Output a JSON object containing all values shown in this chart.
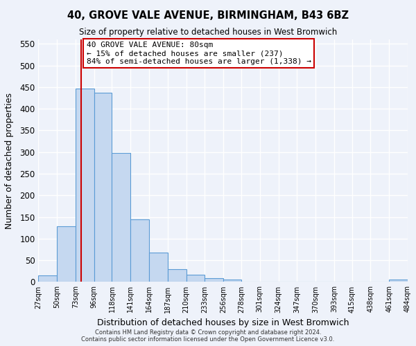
{
  "title": "40, GROVE VALE AVENUE, BIRMINGHAM, B43 6BZ",
  "subtitle": "Size of property relative to detached houses in West Bromwich",
  "xlabel": "Distribution of detached houses by size in West Bromwich",
  "ylabel": "Number of detached properties",
  "bar_values": [
    15,
    128,
    447,
    437,
    298,
    145,
    68,
    29,
    17,
    8,
    5,
    1,
    0,
    0,
    0,
    0,
    0,
    0,
    0,
    5
  ],
  "bin_edges": [
    27,
    50,
    73,
    96,
    118,
    141,
    164,
    187,
    210,
    233,
    256,
    278,
    301,
    324,
    347,
    370,
    393,
    415,
    438,
    461,
    484
  ],
  "tick_labels": [
    "27sqm",
    "50sqm",
    "73sqm",
    "96sqm",
    "118sqm",
    "141sqm",
    "164sqm",
    "187sqm",
    "210sqm",
    "233sqm",
    "256sqm",
    "278sqm",
    "301sqm",
    "324sqm",
    "347sqm",
    "370sqm",
    "393sqm",
    "415sqm",
    "438sqm",
    "461sqm",
    "484sqm"
  ],
  "bar_color": "#c5d8f0",
  "bar_edge_color": "#5b9bd5",
  "property_line_x": 80,
  "property_line_color": "#cc0000",
  "annotation_line1": "40 GROVE VALE AVENUE: 80sqm",
  "annotation_line2": "← 15% of detached houses are smaller (237)",
  "annotation_line3": "84% of semi-detached houses are larger (1,338) →",
  "annotation_box_color": "#ffffff",
  "annotation_box_edge_color": "#cc0000",
  "ylim": [
    0,
    560
  ],
  "yticks": [
    0,
    50,
    100,
    150,
    200,
    250,
    300,
    350,
    400,
    450,
    500,
    550
  ],
  "footer_line1": "Contains HM Land Registry data © Crown copyright and database right 2024.",
  "footer_line2": "Contains public sector information licensed under the Open Government Licence v3.0.",
  "background_color": "#eef2fa",
  "grid_color": "#ffffff"
}
